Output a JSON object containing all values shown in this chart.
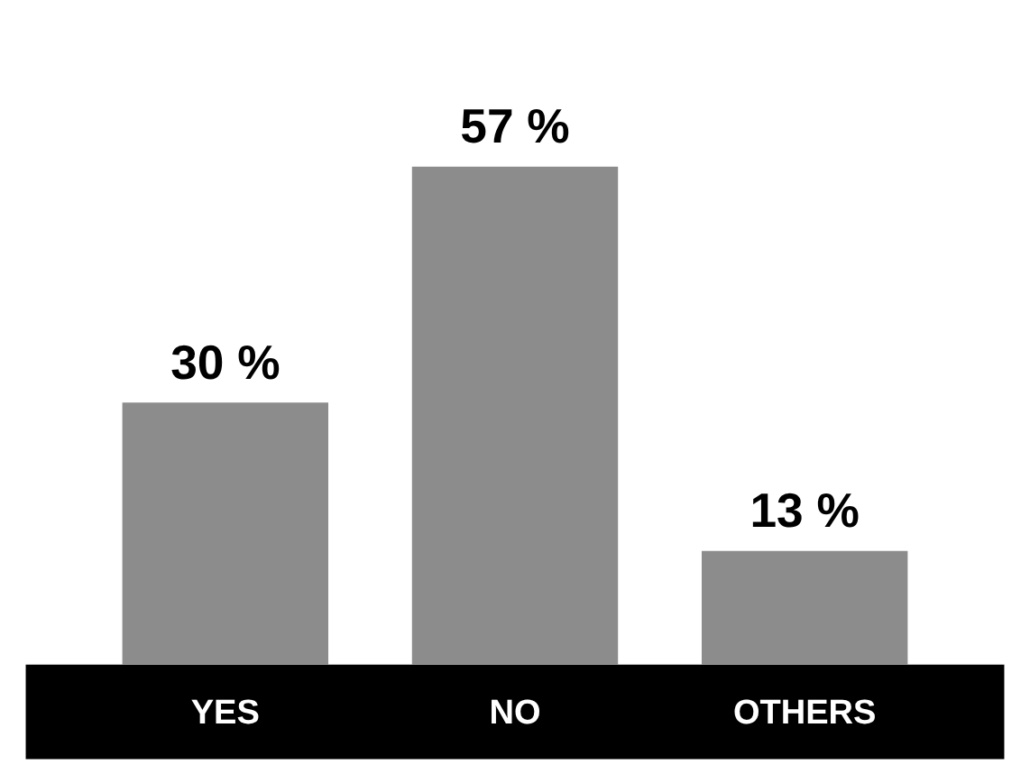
{
  "chart_data": {
    "type": "bar",
    "categories": [
      "YES",
      "NO",
      "OTHERS"
    ],
    "values": [
      30,
      57,
      13
    ],
    "value_labels": [
      "30 %",
      "57 %",
      "13 %"
    ],
    "color": "#8c8c8c",
    "ylim": [
      0,
      57
    ],
    "grid": false
  }
}
